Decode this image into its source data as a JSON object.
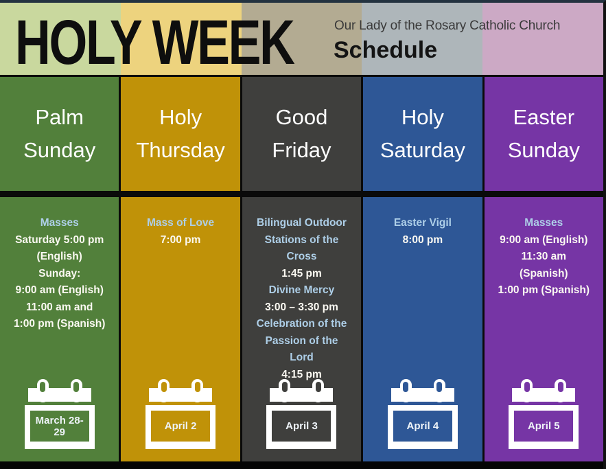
{
  "header": {
    "title": "HOLY WEEK",
    "org_name": "Our Lady of the Rosary Catholic Church",
    "subtitle": "Schedule"
  },
  "colors": {
    "palm_sunday": "#52803b",
    "holy_thursday": "#c09208",
    "good_friday": "#3f3f3d",
    "holy_saturday": "#2e5796",
    "easter_sunday": "#7635a5",
    "header_tints": [
      "#c9d89e",
      "#edd37e",
      "#b3ab92",
      "#aeb6ba",
      "#cca9c5"
    ],
    "heading_text": "#aecfe8",
    "body_text": "#fbf9f2"
  },
  "columns": [
    {
      "day_line1": "Palm",
      "day_line2": "Sunday",
      "schedule": [
        {
          "text": "Masses",
          "style": "heading"
        },
        {
          "text": "Saturday 5:00 pm",
          "style": "normal"
        },
        {
          "text": "(English)",
          "style": "normal"
        },
        {
          "text": "Sunday:",
          "style": "normal"
        },
        {
          "text": "9:00 am (English)",
          "style": "normal"
        },
        {
          "text": "11:00 am and",
          "style": "normal"
        },
        {
          "text": "1:00 pm (Spanish)",
          "style": "normal"
        }
      ],
      "date": "March 28-29"
    },
    {
      "day_line1": "Holy",
      "day_line2": "Thursday",
      "schedule": [
        {
          "text": "Mass of Love",
          "style": "heading"
        },
        {
          "text": "7:00 pm",
          "style": "normal"
        }
      ],
      "date": "April 2"
    },
    {
      "day_line1": "Good",
      "day_line2": "Friday",
      "schedule": [
        {
          "text": "Bilingual Outdoor",
          "style": "heading"
        },
        {
          "text": "Stations of the",
          "style": "heading"
        },
        {
          "text": "Cross",
          "style": "heading"
        },
        {
          "text": "1:45 pm",
          "style": "normal"
        },
        {
          "text": "Divine Mercy",
          "style": "heading"
        },
        {
          "text": "3:00 – 3:30 pm",
          "style": "normal"
        },
        {
          "text": "Celebration of the",
          "style": "heading"
        },
        {
          "text": "Passion of the",
          "style": "heading"
        },
        {
          "text": "Lord",
          "style": "heading"
        },
        {
          "text": "4:15 pm",
          "style": "normal"
        }
      ],
      "date": "April 3"
    },
    {
      "day_line1": "Holy",
      "day_line2": "Saturday",
      "schedule": [
        {
          "text": "Easter Vigil",
          "style": "heading"
        },
        {
          "text": "8:00 pm",
          "style": "normal"
        }
      ],
      "date": "April 4"
    },
    {
      "day_line1": "Easter",
      "day_line2": "Sunday",
      "schedule": [
        {
          "text": "Masses",
          "style": "heading"
        },
        {
          "text": "9:00 am (English)",
          "style": "normal"
        },
        {
          "text": "11:30 am",
          "style": "normal"
        },
        {
          "text": "(Spanish)",
          "style": "normal"
        },
        {
          "text": "1:00 pm (Spanish)",
          "style": "normal"
        }
      ],
      "date": "April 5"
    }
  ]
}
